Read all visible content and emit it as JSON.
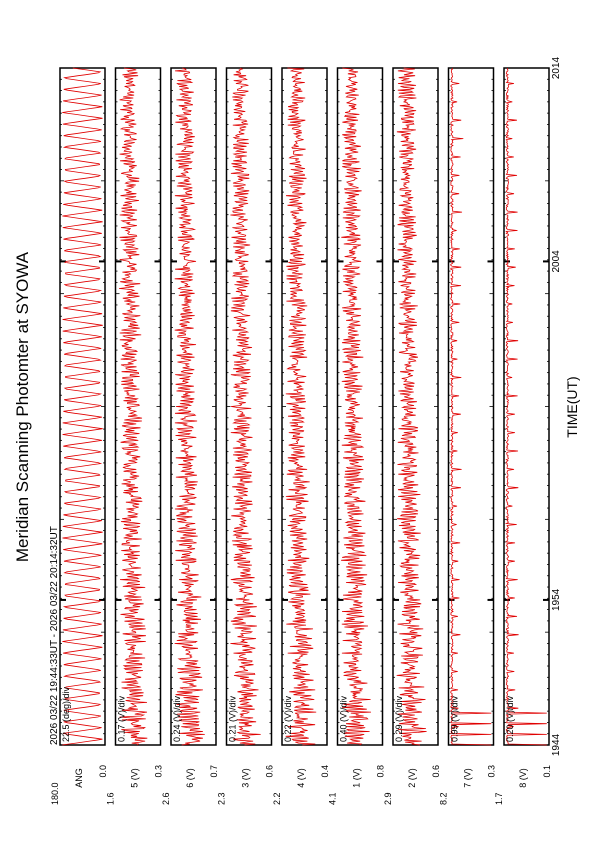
{
  "chart_data": {
    "type": "line",
    "orientation": "rotated-90-ccw",
    "title": "Meridian Scanning Photomter at SYOWA",
    "time_range": "2026 03/22 19:44:33UT - 2026 03/22 20:14:32UT",
    "xlabel": "TIME(UT)",
    "x_ticks": [
      "1944",
      "1954",
      "2004",
      "2014"
    ],
    "x_start": "1944",
    "x_end": "2014",
    "line_color": "#e00000",
    "panels": [
      {
        "scale": "22.5 (deg)/div",
        "channel": "ANG",
        "ymax": "180.0",
        "ymin": "0.0",
        "waveform": "sawtooth"
      },
      {
        "scale": "0.17 (V)/div",
        "channel": "5 (V)",
        "ymax": "1.6",
        "ymin": "0.3",
        "waveform": "noise"
      },
      {
        "scale": "0.24 (V)/div",
        "channel": "6 (V)",
        "ymax": "2.6",
        "ymin": "0.7",
        "waveform": "noise"
      },
      {
        "scale": "0.21 (V)/div",
        "channel": "3 (V)",
        "ymax": "2.3",
        "ymin": "0.6",
        "waveform": "noise"
      },
      {
        "scale": "0.22 (V)/div",
        "channel": "4 (V)",
        "ymax": "2.2",
        "ymin": "0.4",
        "waveform": "noise"
      },
      {
        "scale": "0.40 (V)/div",
        "channel": "1 (V)",
        "ymax": "4.1",
        "ymin": "0.8",
        "waveform": "noise"
      },
      {
        "scale": "0.29 (V)/div",
        "channel": "2 (V)",
        "ymax": "2.9",
        "ymin": "0.6",
        "waveform": "noise"
      },
      {
        "scale": "0.99 (V)/div",
        "channel": "7 (V)",
        "ymax": "8.2",
        "ymin": "0.3",
        "waveform": "spiky"
      },
      {
        "scale": "0.20 (V)/div",
        "channel": "8 (V)",
        "ymax": "1.7",
        "ymin": "0.1",
        "waveform": "spiky"
      }
    ]
  }
}
